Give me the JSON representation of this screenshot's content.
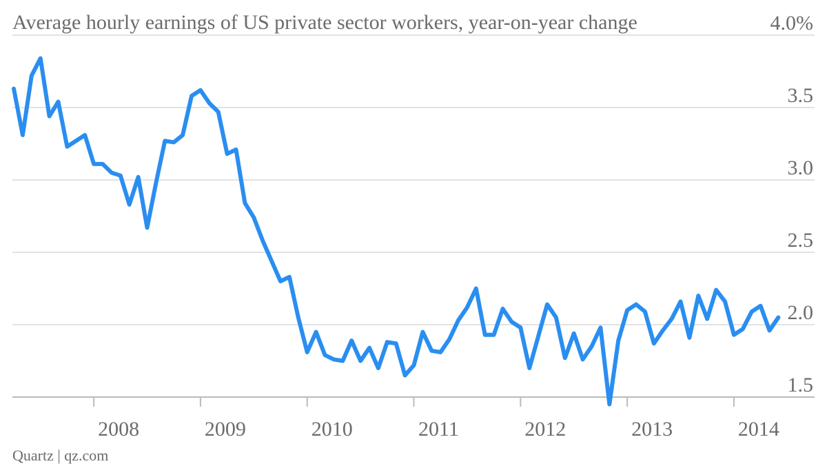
{
  "chart_data": {
    "type": "line",
    "title": "Average hourly earnings of US private sector workers, year-on-year change",
    "source": "Quartz | qz.com",
    "categories": [
      null,
      null,
      null,
      null,
      null,
      null,
      null,
      null,
      null,
      "2008",
      null,
      null,
      null,
      null,
      null,
      null,
      null,
      null,
      null,
      null,
      null,
      "2009",
      null,
      null,
      null,
      null,
      null,
      null,
      null,
      null,
      null,
      null,
      null,
      "2010",
      null,
      null,
      null,
      null,
      null,
      null,
      null,
      null,
      null,
      null,
      null,
      "2011",
      null,
      null,
      null,
      null,
      null,
      null,
      null,
      null,
      null,
      null,
      null,
      "2012",
      null,
      null,
      null,
      null,
      null,
      null,
      null,
      null,
      null,
      null,
      null,
      "2013",
      null,
      null,
      null,
      null,
      null,
      null,
      null,
      null,
      null,
      null,
      null,
      "2014",
      null,
      null,
      null,
      null,
      null
    ],
    "series": [
      {
        "name": "Year-on-year change",
        "color": "#2a8ef0",
        "values": [
          3.63,
          3.31,
          3.72,
          3.84,
          3.44,
          3.54,
          3.23,
          3.27,
          3.31,
          3.11,
          3.11,
          3.05,
          3.03,
          2.83,
          3.02,
          2.67,
          2.98,
          3.27,
          3.26,
          3.31,
          3.58,
          3.62,
          3.53,
          3.47,
          3.18,
          3.21,
          2.84,
          2.74,
          2.58,
          2.44,
          2.3,
          2.33,
          2.05,
          1.81,
          1.95,
          1.79,
          1.76,
          1.75,
          1.89,
          1.75,
          1.84,
          1.7,
          1.88,
          1.87,
          1.65,
          1.72,
          1.95,
          1.82,
          1.81,
          1.9,
          2.03,
          2.12,
          2.25,
          1.93,
          1.93,
          2.11,
          2.02,
          1.98,
          1.7,
          1.92,
          2.14,
          2.05,
          1.77,
          1.94,
          1.76,
          1.85,
          1.98,
          1.45,
          1.89,
          2.1,
          2.14,
          2.09,
          1.87,
          1.96,
          2.04,
          2.16,
          1.91,
          2.2,
          2.04,
          2.24,
          2.16,
          1.93,
          1.97,
          2.09,
          2.13,
          1.96,
          2.05
        ]
      }
    ],
    "ylim": [
      1.5,
      4.0
    ],
    "yticks": [
      1.5,
      {
        "value": 2,
        "label": "2.0"
      },
      2.5,
      {
        "value": 3,
        "label": "3.0"
      },
      3.5,
      {
        "value": 4,
        "label": "4.0%"
      }
    ],
    "grid": true
  }
}
